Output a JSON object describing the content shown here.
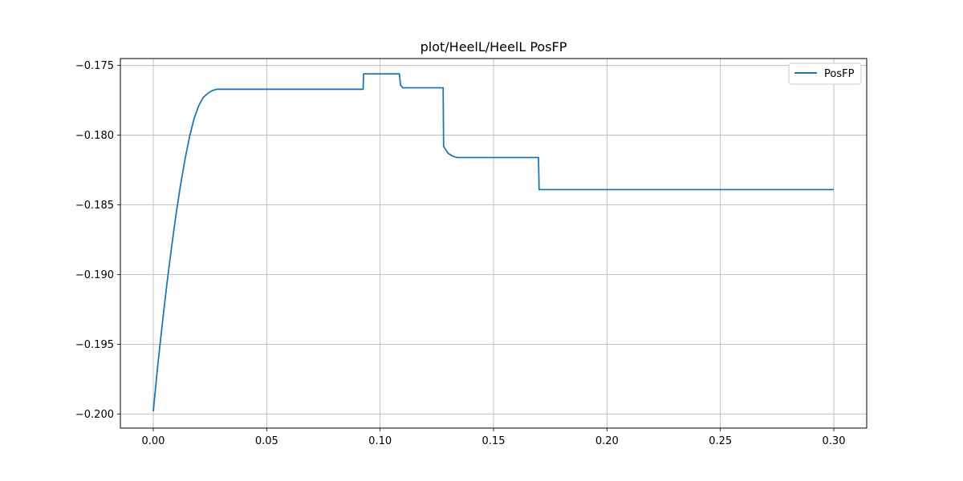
{
  "chart_data": {
    "type": "line",
    "title": "plot/HeelL/HeelL PosFP",
    "xlabel": "",
    "ylabel": "",
    "xlim": [
      -0.0145,
      0.3145
    ],
    "ylim": [
      -0.201,
      -0.1745
    ],
    "xticks": [
      0.0,
      0.05,
      0.1,
      0.15,
      0.2,
      0.25,
      0.3
    ],
    "xtick_labels": [
      "0.00",
      "0.05",
      "0.10",
      "0.15",
      "0.20",
      "0.25",
      "0.30"
    ],
    "yticks": [
      -0.2,
      -0.195,
      -0.19,
      -0.185,
      -0.18,
      -0.175
    ],
    "ytick_labels": [
      "−0.200",
      "−0.195",
      "−0.190",
      "−0.185",
      "−0.180",
      "−0.175"
    ],
    "grid": true,
    "legend_position": "top-right",
    "series": [
      {
        "name": "PosFP",
        "color": "#1f77b4",
        "x": [
          0.0,
          0.002,
          0.004,
          0.006,
          0.008,
          0.01,
          0.012,
          0.014,
          0.016,
          0.018,
          0.02,
          0.022,
          0.024,
          0.026,
          0.028,
          0.03,
          0.05,
          0.07,
          0.0925,
          0.0927,
          0.1,
          0.1085,
          0.109,
          0.11,
          0.115,
          0.12,
          0.1278,
          0.128,
          0.13,
          0.132,
          0.134,
          0.15,
          0.165,
          0.1698,
          0.1701,
          0.18,
          0.2,
          0.25,
          0.3
        ],
        "y": [
          -0.1998,
          -0.1965,
          -0.1935,
          -0.1907,
          -0.1881,
          -0.1857,
          -0.1836,
          -0.1817,
          -0.1801,
          -0.1788,
          -0.1779,
          -0.1773,
          -0.177,
          -0.1768,
          -0.1767,
          -0.1767,
          -0.1767,
          -0.1767,
          -0.1767,
          -0.1756,
          -0.1756,
          -0.1756,
          -0.1764,
          -0.1766,
          -0.1766,
          -0.1766,
          -0.1766,
          -0.1808,
          -0.1813,
          -0.1815,
          -0.1816,
          -0.1816,
          -0.1816,
          -0.1816,
          -0.1839,
          -0.1839,
          -0.1839,
          -0.1839,
          -0.1839
        ]
      }
    ]
  }
}
